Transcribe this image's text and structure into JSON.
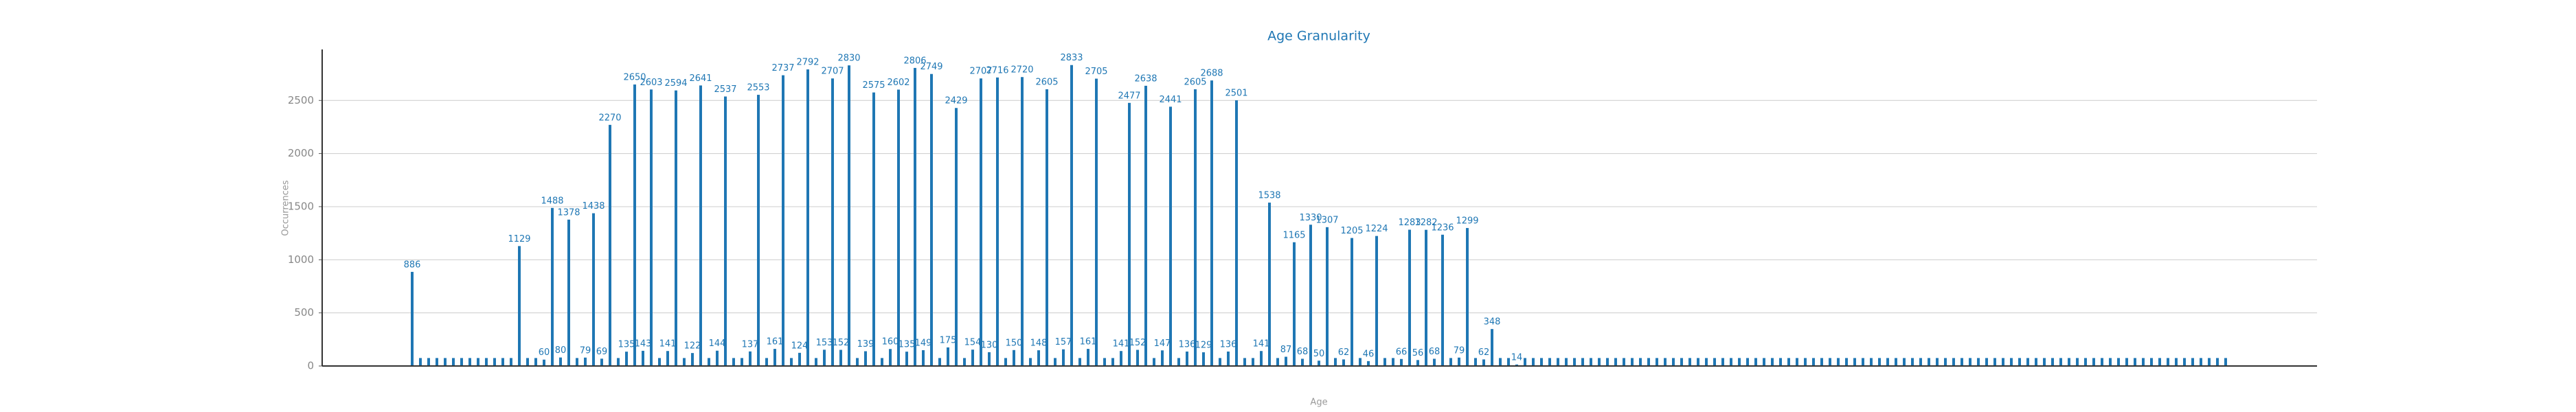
{
  "chart_data": {
    "type": "bar",
    "title": "Age Granularity",
    "x_label": "Age",
    "y_label": "Occurrences",
    "color": "#1f77b4",
    "ylim": [
      0,
      2980
    ],
    "yticks": [
      0,
      500,
      1000,
      1500,
      2000,
      2500
    ],
    "grid": true,
    "values": [
      886,
      75,
      75,
      75,
      75,
      75,
      75,
      75,
      75,
      75,
      75,
      75,
      75,
      1129,
      75,
      75,
      60,
      1488,
      80,
      1378,
      75,
      79,
      1438,
      69,
      2270,
      75,
      135,
      2650,
      143,
      2603,
      75,
      141,
      2594,
      75,
      122,
      2641,
      75,
      144,
      2537,
      75,
      75,
      137,
      2553,
      75,
      161,
      2737,
      75,
      124,
      2792,
      75,
      153,
      2707,
      152,
      2830,
      75,
      139,
      2575,
      75,
      160,
      2602,
      135,
      2806,
      149,
      2749,
      75,
      175,
      2429,
      75,
      154,
      2707,
      130,
      2716,
      75,
      150,
      2720,
      75,
      148,
      2605,
      75,
      157,
      2833,
      75,
      161,
      2705,
      75,
      75,
      141,
      2477,
      152,
      2638,
      75,
      147,
      2441,
      75,
      136,
      2605,
      129,
      2688,
      75,
      136,
      2501,
      75,
      75,
      141,
      1538,
      75,
      87,
      1165,
      68,
      1330,
      50,
      1307,
      75,
      62,
      1205,
      75,
      46,
      1224,
      75,
      75,
      66,
      1283,
      56,
      1282,
      68,
      1236,
      75,
      79,
      1299,
      75,
      62,
      348,
      75,
      75,
      14,
      75,
      75,
      75,
      75,
      75,
      75,
      75,
      75,
      75,
      75,
      75,
      75,
      75,
      75,
      75,
      75,
      75,
      75,
      75,
      75,
      75,
      75,
      75,
      75,
      75,
      75,
      75,
      75,
      75,
      75,
      75,
      75,
      75,
      75,
      75,
      75,
      75,
      75,
      75,
      75,
      75,
      75,
      75,
      75,
      75,
      75,
      75,
      75,
      75,
      75,
      75,
      75,
      75,
      75,
      75,
      75,
      75,
      75,
      75,
      75,
      75,
      75,
      75,
      75,
      75,
      75,
      75,
      75,
      75,
      75,
      75,
      75,
      75,
      75,
      75,
      75,
      75,
      75,
      75,
      75,
      75,
      75,
      75,
      75,
      75,
      75
    ],
    "value_labels": [
      "886",
      null,
      null,
      null,
      null,
      null,
      null,
      null,
      null,
      null,
      null,
      null,
      null,
      "1129",
      null,
      null,
      "60",
      "1488",
      "80",
      "1378",
      null,
      "79",
      "1438",
      "69",
      "2270",
      null,
      "135",
      "2650",
      "143",
      "2603",
      null,
      "141",
      "2594",
      null,
      "122",
      "2641",
      null,
      "144",
      "2537",
      null,
      null,
      "137",
      "2553",
      null,
      "161",
      "2737",
      null,
      "124",
      "2792",
      null,
      "153",
      "2707",
      "152",
      "2830",
      null,
      "139",
      "2575",
      null,
      "160",
      "2602",
      "135",
      "2806",
      "149",
      "2749",
      null,
      "175",
      "2429",
      null,
      "154",
      "2707",
      "130",
      "2716",
      null,
      "150",
      "2720",
      null,
      "148",
      "2605",
      null,
      "157",
      "2833",
      null,
      "161",
      "2705",
      null,
      null,
      "141",
      "2477",
      "152",
      "2638",
      null,
      "147",
      "2441",
      null,
      "136",
      "2605",
      "129",
      "2688",
      null,
      "136",
      "2501",
      null,
      null,
      "141",
      "1538",
      null,
      "87",
      "1165",
      "68",
      "1330",
      "50",
      "1307",
      null,
      "62",
      "1205",
      null,
      "46",
      "1224",
      null,
      null,
      "66",
      "1283",
      "56",
      "1282",
      "68",
      "1236",
      null,
      "79",
      "1299",
      null,
      "62",
      "348",
      null,
      null,
      "14",
      null,
      null,
      null,
      null,
      null,
      null,
      null,
      null,
      null,
      null,
      null,
      null,
      null,
      null,
      null,
      null,
      null,
      null,
      null,
      null,
      null,
      null,
      null,
      null,
      null,
      null,
      null,
      null,
      null,
      null,
      null,
      null,
      null,
      null,
      null,
      null,
      null,
      null,
      null,
      null,
      null,
      null,
      null,
      null,
      null,
      null,
      null,
      null,
      null,
      null,
      null,
      null,
      null,
      null,
      null,
      null,
      null,
      null,
      null,
      null,
      null,
      null,
      null,
      null,
      null,
      null,
      null,
      null,
      null,
      null,
      null,
      null,
      null,
      null,
      null,
      null,
      null,
      null,
      null,
      null,
      null,
      null,
      null,
      null,
      null,
      null
    ]
  }
}
